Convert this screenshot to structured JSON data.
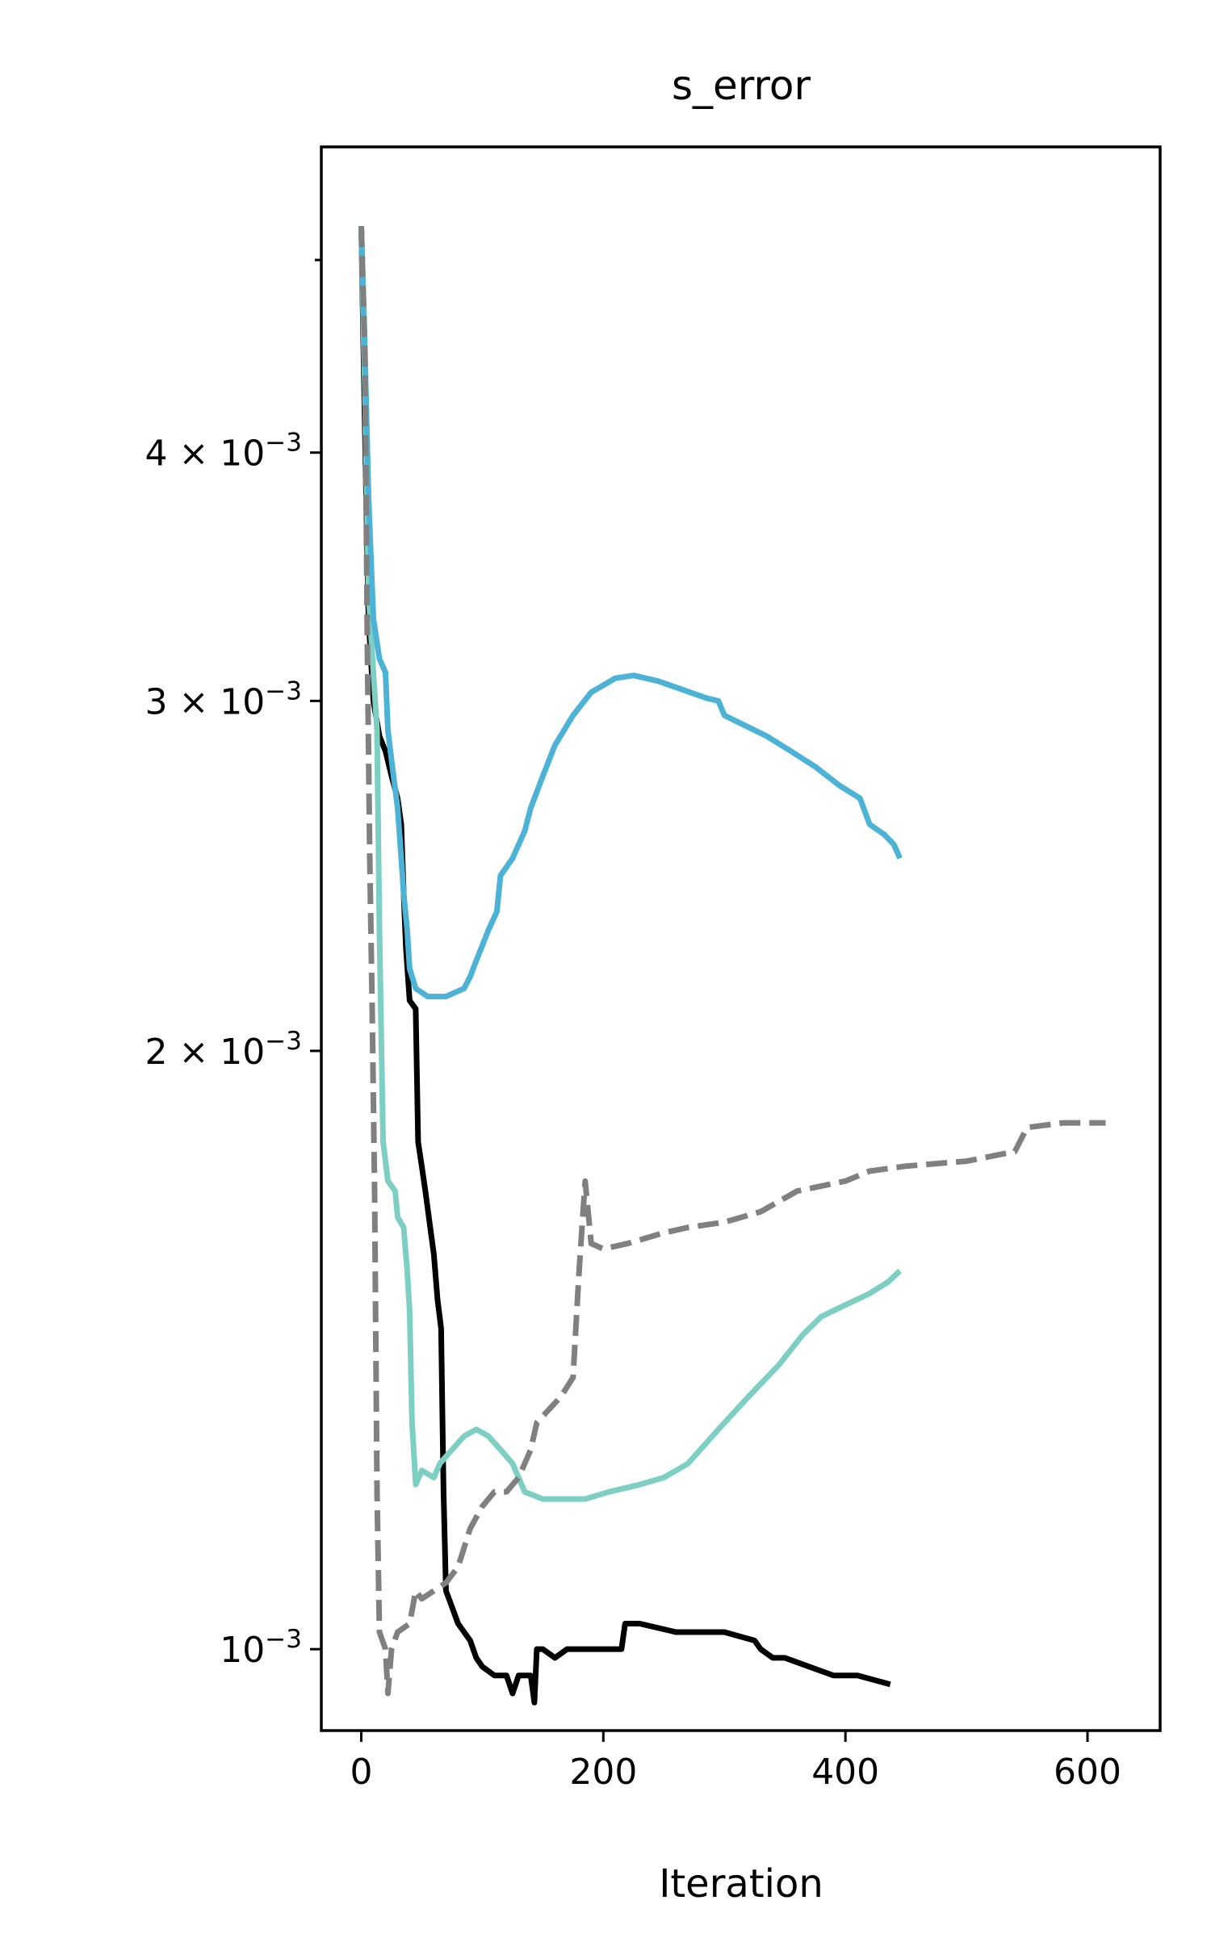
{
  "chart_data": {
    "type": "line",
    "title": "s_error",
    "xlabel": "Iteration",
    "ylabel": "",
    "y_scale": "log",
    "xlim": [
      -33,
      660
    ],
    "ylim": [
      0.00091,
      0.0057
    ],
    "grid": false,
    "legend": "none",
    "x_ticks": [
      {
        "value": 0,
        "label": "0"
      },
      {
        "value": 200,
        "label": "200"
      },
      {
        "value": 400,
        "label": "400"
      },
      {
        "value": 600,
        "label": "600"
      }
    ],
    "y_ticks": [
      {
        "value": 0.001,
        "base": "10",
        "exp": "−3"
      },
      {
        "value": 0.002,
        "base": "2 × 10",
        "exp": "−3"
      },
      {
        "value": 0.003,
        "base": "3 × 10",
        "exp": "−3"
      },
      {
        "value": 0.004,
        "base": "4 × 10",
        "exp": "−3"
      }
    ],
    "y_minor_ticks": [
      0.005
    ],
    "series": [
      {
        "color": "#000000",
        "dash": "solid",
        "points": [
          [
            0,
            0.0052
          ],
          [
            3,
            0.0041
          ],
          [
            6,
            0.0033
          ],
          [
            10,
            0.003
          ],
          [
            15,
            0.00288
          ],
          [
            20,
            0.00283
          ],
          [
            25,
            0.00275
          ],
          [
            30,
            0.00268
          ],
          [
            33,
            0.0026
          ],
          [
            35,
            0.0024
          ],
          [
            37,
            0.00225
          ],
          [
            40,
            0.00212
          ],
          [
            45,
            0.0021
          ],
          [
            47,
            0.0018
          ],
          [
            50,
            0.00175
          ],
          [
            53,
            0.0017
          ],
          [
            57,
            0.00163
          ],
          [
            60,
            0.00158
          ],
          [
            63,
            0.0015
          ],
          [
            66,
            0.00145
          ],
          [
            68,
            0.0012
          ],
          [
            70,
            0.00107
          ],
          [
            75,
            0.00105
          ],
          [
            80,
            0.00103
          ],
          [
            85,
            0.00102
          ],
          [
            90,
            0.00101
          ],
          [
            95,
            0.00099
          ],
          [
            100,
            0.00098
          ],
          [
            110,
            0.00097
          ],
          [
            120,
            0.00097
          ],
          [
            125,
            0.00095
          ],
          [
            130,
            0.00097
          ],
          [
            140,
            0.00097
          ],
          [
            143,
            0.00094
          ],
          [
            145,
            0.001
          ],
          [
            150,
            0.001
          ],
          [
            160,
            0.00099
          ],
          [
            170,
            0.001
          ],
          [
            180,
            0.001
          ],
          [
            200,
            0.001
          ],
          [
            215,
            0.001
          ],
          [
            218,
            0.00103
          ],
          [
            230,
            0.00103
          ],
          [
            260,
            0.00102
          ],
          [
            300,
            0.00102
          ],
          [
            325,
            0.00101
          ],
          [
            330,
            0.001
          ],
          [
            340,
            0.00099
          ],
          [
            350,
            0.00099
          ],
          [
            370,
            0.00098
          ],
          [
            390,
            0.00097
          ],
          [
            410,
            0.00097
          ],
          [
            437,
            0.00096
          ]
        ]
      },
      {
        "color": "#4db3d6",
        "dash": "solid",
        "points": [
          [
            0,
            0.0052
          ],
          [
            3,
            0.0045
          ],
          [
            6,
            0.0038
          ],
          [
            10,
            0.0033
          ],
          [
            15,
            0.00315
          ],
          [
            20,
            0.0031
          ],
          [
            22,
            0.0029
          ],
          [
            25,
            0.0028
          ],
          [
            30,
            0.00265
          ],
          [
            33,
            0.0025
          ],
          [
            35,
            0.0024
          ],
          [
            38,
            0.0023
          ],
          [
            40,
            0.0022
          ],
          [
            45,
            0.00215
          ],
          [
            55,
            0.00213
          ],
          [
            70,
            0.00213
          ],
          [
            85,
            0.00215
          ],
          [
            90,
            0.00218
          ],
          [
            95,
            0.00222
          ],
          [
            105,
            0.0023
          ],
          [
            112,
            0.00235
          ],
          [
            115,
            0.00245
          ],
          [
            125,
            0.0025
          ],
          [
            135,
            0.00258
          ],
          [
            140,
            0.00265
          ],
          [
            150,
            0.00275
          ],
          [
            160,
            0.00285
          ],
          [
            175,
            0.00295
          ],
          [
            190,
            0.00303
          ],
          [
            210,
            0.00308
          ],
          [
            225,
            0.00309
          ],
          [
            245,
            0.00307
          ],
          [
            265,
            0.00304
          ],
          [
            285,
            0.00301
          ],
          [
            295,
            0.003
          ],
          [
            300,
            0.00295
          ],
          [
            315,
            0.00292
          ],
          [
            335,
            0.00288
          ],
          [
            355,
            0.00283
          ],
          [
            375,
            0.00278
          ],
          [
            395,
            0.00272
          ],
          [
            412,
            0.00268
          ],
          [
            420,
            0.0026
          ],
          [
            432,
            0.00257
          ],
          [
            440,
            0.00254
          ],
          [
            445,
            0.0025
          ]
        ]
      },
      {
        "color": "#7dcfc4",
        "dash": "solid",
        "points": [
          [
            0,
            0.0052
          ],
          [
            3,
            0.0043
          ],
          [
            6,
            0.0034
          ],
          [
            10,
            0.0031
          ],
          [
            13,
            0.0029
          ],
          [
            15,
            0.0023
          ],
          [
            18,
            0.0018
          ],
          [
            22,
            0.00172
          ],
          [
            28,
            0.0017
          ],
          [
            30,
            0.00165
          ],
          [
            35,
            0.00163
          ],
          [
            38,
            0.00155
          ],
          [
            40,
            0.00148
          ],
          [
            42,
            0.0013
          ],
          [
            45,
            0.00121
          ],
          [
            50,
            0.00123
          ],
          [
            60,
            0.00122
          ],
          [
            65,
            0.00124
          ],
          [
            75,
            0.00126
          ],
          [
            85,
            0.00128
          ],
          [
            95,
            0.00129
          ],
          [
            105,
            0.00128
          ],
          [
            115,
            0.00126
          ],
          [
            125,
            0.00124
          ],
          [
            135,
            0.0012
          ],
          [
            150,
            0.00119
          ],
          [
            165,
            0.00119
          ],
          [
            185,
            0.00119
          ],
          [
            205,
            0.0012
          ],
          [
            230,
            0.00121
          ],
          [
            250,
            0.00122
          ],
          [
            270,
            0.00124
          ],
          [
            295,
            0.00129
          ],
          [
            320,
            0.00134
          ],
          [
            345,
            0.00139
          ],
          [
            365,
            0.00144
          ],
          [
            380,
            0.00147
          ],
          [
            400,
            0.00149
          ],
          [
            420,
            0.00151
          ],
          [
            435,
            0.00153
          ],
          [
            445,
            0.00155
          ]
        ]
      },
      {
        "color": "#808080",
        "dash": "dashed",
        "points": [
          [
            0,
            0.0052
          ],
          [
            3,
            0.0045
          ],
          [
            5,
            0.0032
          ],
          [
            7,
            0.0025
          ],
          [
            9,
            0.0021
          ],
          [
            11,
            0.0017
          ],
          [
            13,
            0.0012
          ],
          [
            15,
            0.00102
          ],
          [
            20,
            0.001
          ],
          [
            22,
            0.00095
          ],
          [
            25,
            0.001
          ],
          [
            30,
            0.00102
          ],
          [
            40,
            0.00103
          ],
          [
            45,
            0.00107
          ],
          [
            50,
            0.00106
          ],
          [
            60,
            0.00107
          ],
          [
            70,
            0.00108
          ],
          [
            80,
            0.0011
          ],
          [
            90,
            0.00115
          ],
          [
            100,
            0.00118
          ],
          [
            110,
            0.0012
          ],
          [
            120,
            0.0012
          ],
          [
            130,
            0.00122
          ],
          [
            140,
            0.00126
          ],
          [
            145,
            0.0013
          ],
          [
            155,
            0.00132
          ],
          [
            165,
            0.00134
          ],
          [
            175,
            0.00137
          ],
          [
            180,
            0.00155
          ],
          [
            185,
            0.00172
          ],
          [
            190,
            0.0016
          ],
          [
            200,
            0.00159
          ],
          [
            220,
            0.0016
          ],
          [
            250,
            0.00162
          ],
          [
            270,
            0.00163
          ],
          [
            300,
            0.00164
          ],
          [
            330,
            0.00166
          ],
          [
            360,
            0.0017
          ],
          [
            400,
            0.00172
          ],
          [
            420,
            0.00174
          ],
          [
            450,
            0.00175
          ],
          [
            500,
            0.00176
          ],
          [
            540,
            0.00178
          ],
          [
            550,
            0.00183
          ],
          [
            580,
            0.00184
          ],
          [
            615,
            0.00184
          ]
        ]
      }
    ]
  }
}
